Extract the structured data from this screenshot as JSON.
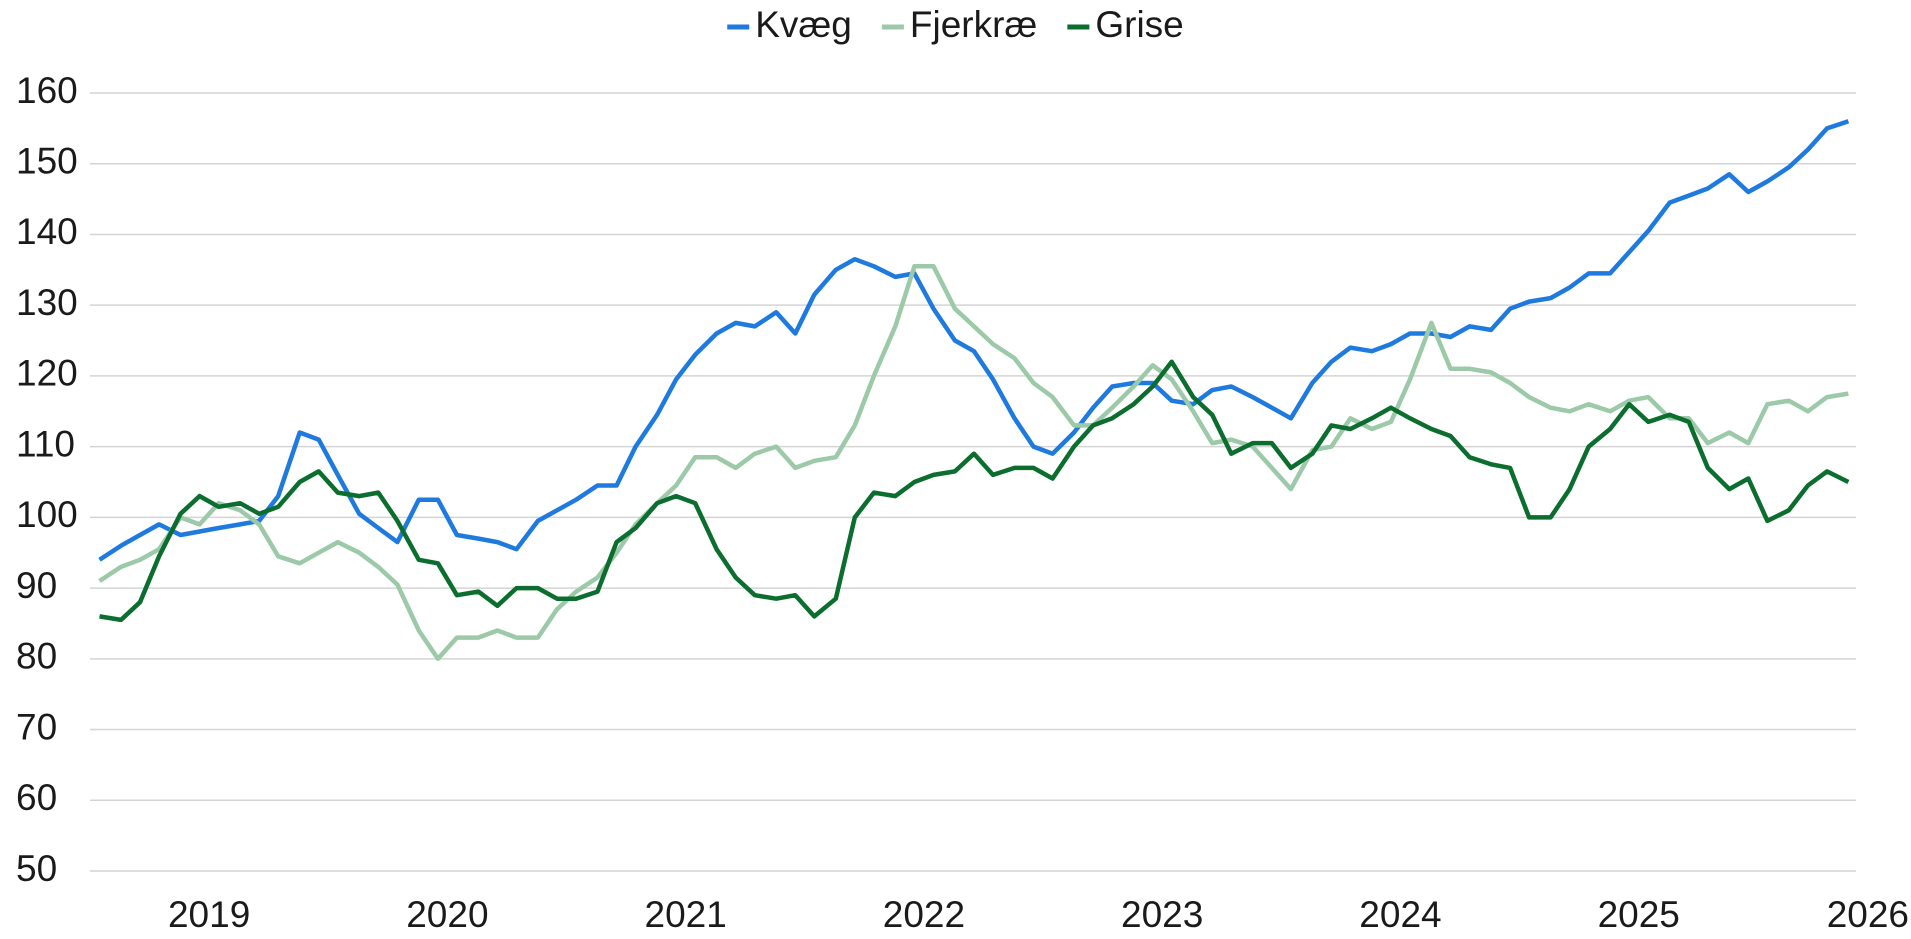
{
  "chart_data": {
    "type": "line",
    "x": [
      2018.54,
      2018.63,
      2018.71,
      2018.79,
      2018.88,
      2018.96,
      2019.04,
      2019.13,
      2019.21,
      2019.29,
      2019.38,
      2019.46,
      2019.54,
      2019.63,
      2019.71,
      2019.79,
      2019.88,
      2019.96,
      2020.04,
      2020.13,
      2020.21,
      2020.29,
      2020.38,
      2020.46,
      2020.54,
      2020.63,
      2020.71,
      2020.79,
      2020.88,
      2020.96,
      2021.04,
      2021.13,
      2021.21,
      2021.29,
      2021.38,
      2021.46,
      2021.54,
      2021.63,
      2021.71,
      2021.79,
      2021.88,
      2021.96,
      2022.04,
      2022.13,
      2022.21,
      2022.29,
      2022.38,
      2022.46,
      2022.54,
      2022.63,
      2022.71,
      2022.79,
      2022.88,
      2022.96,
      2023.04,
      2023.13,
      2023.21,
      2023.29,
      2023.38,
      2023.46,
      2023.54,
      2023.63,
      2023.71,
      2023.79,
      2023.88,
      2023.96,
      2024.04,
      2024.13,
      2024.21,
      2024.29,
      2024.38,
      2024.46,
      2024.54,
      2024.63,
      2024.71,
      2024.79,
      2024.88,
      2024.96,
      2025.04,
      2025.13,
      2025.21,
      2025.29,
      2025.38,
      2025.46,
      2025.54,
      2025.63,
      2025.71,
      2025.79,
      2025.88
    ],
    "series": [
      {
        "name": "Kvæg",
        "color": "#1f7ae0",
        "values": [
          94,
          96,
          97.5,
          99,
          97.5,
          98,
          98.5,
          99,
          99.5,
          103,
          112,
          111,
          106,
          100.5,
          98.5,
          96.5,
          102.5,
          102.5,
          97.5,
          97,
          96.5,
          95.5,
          99.5,
          101,
          102.5,
          104.5,
          104.5,
          110,
          114.5,
          119.5,
          123,
          126,
          127.5,
          127,
          129,
          126,
          131.5,
          135,
          136.5,
          135.5,
          134,
          134.5,
          129.5,
          125,
          123.5,
          119.5,
          114,
          110,
          109,
          112,
          115.5,
          118.5,
          119,
          119,
          116.5,
          116,
          118,
          118.5,
          117,
          115.5,
          114,
          119,
          122,
          124,
          123.5,
          124.5,
          126,
          126,
          125.5,
          127,
          126.5,
          129.5,
          130.5,
          131,
          132.5,
          134.5,
          134.5,
          137.5,
          140.5,
          144.5,
          145.5,
          146.5,
          148.5,
          146,
          147.5,
          149.5,
          152,
          155,
          156
        ]
      },
      {
        "name": "Fjerkræ",
        "color": "#9cc9a8",
        "values": [
          91,
          93,
          94,
          95.5,
          100,
          99,
          102,
          101,
          99,
          94.5,
          93.5,
          95,
          96.5,
          95,
          93,
          90.5,
          84,
          80,
          83,
          83,
          84,
          83,
          83,
          87,
          89.5,
          91.5,
          95,
          99,
          102,
          104.5,
          108.5,
          108.5,
          107,
          109,
          110,
          107,
          108,
          108.5,
          113,
          120,
          127,
          135.5,
          135.5,
          129.5,
          127,
          124.5,
          122.5,
          119,
          117,
          113,
          113,
          115.5,
          118.5,
          121.5,
          119.5,
          115,
          110.5,
          111,
          110,
          107,
          104,
          109.5,
          110,
          114,
          112.5,
          113.5,
          119.5,
          127.5,
          121,
          121,
          120.5,
          119,
          117,
          115.5,
          115,
          116,
          115,
          116.5,
          117,
          114,
          114,
          110.5,
          112,
          110.5,
          116,
          116.5,
          115,
          117,
          117.5
        ]
      },
      {
        "name": "Grise",
        "color": "#0b6e2e",
        "values": [
          86,
          85.5,
          88,
          94.5,
          100.5,
          103,
          101.5,
          102,
          100.5,
          101.5,
          105,
          106.5,
          103.5,
          103,
          103.5,
          99.5,
          94,
          93.5,
          89,
          89.5,
          87.5,
          90,
          90,
          88.5,
          88.5,
          89.5,
          96.5,
          98.5,
          102,
          103,
          102,
          95.5,
          91.5,
          89,
          88.5,
          89,
          86,
          88.5,
          100,
          103.5,
          103,
          105,
          106,
          106.5,
          109,
          106,
          107,
          107,
          105.5,
          110,
          113,
          114,
          116,
          118.5,
          122,
          117,
          114.5,
          109,
          110.5,
          110.5,
          107,
          109,
          113,
          112.5,
          114,
          115.5,
          114,
          112.5,
          111.5,
          108.5,
          107.5,
          107,
          100,
          100,
          104,
          110,
          112.5,
          116,
          113.5,
          114.5,
          113.5,
          107,
          104,
          105.5,
          99.5,
          101,
          104.5,
          106.5,
          105
        ]
      }
    ],
    "xlim": [
      2018.5,
      2026
    ],
    "xticks": [
      2019,
      2020,
      2021,
      2022,
      2023,
      2024,
      2025,
      2026
    ],
    "ylim": [
      50,
      160
    ],
    "yticks": [
      50,
      60,
      70,
      80,
      90,
      100,
      110,
      120,
      130,
      140,
      150,
      160
    ],
    "grid": true,
    "legend": "top"
  }
}
